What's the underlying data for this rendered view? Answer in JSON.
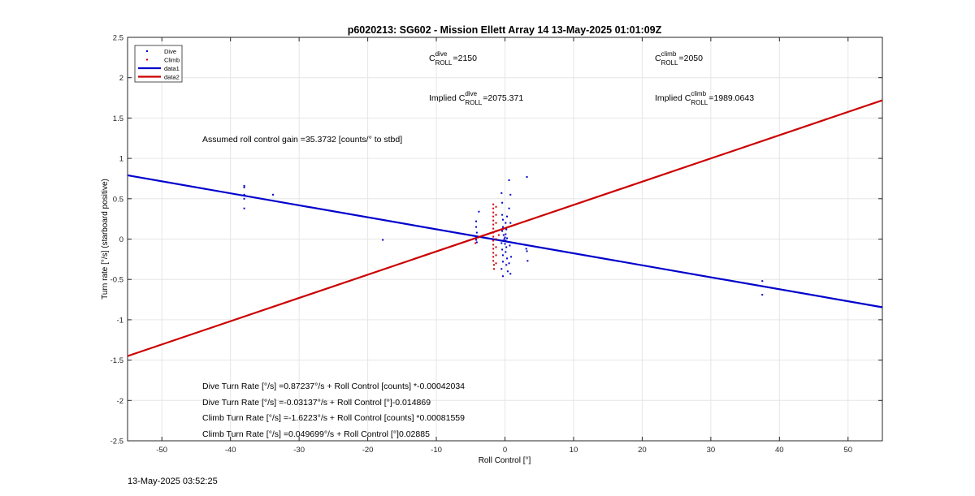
{
  "chart_data": {
    "type": "scatter",
    "title": "p6020213: SG602 - Mission Ellett Array 14 13-May-2025 01:01:09Z",
    "xlabel": "Roll Control [°]",
    "ylabel": "Turn rate [°/s] (starboard positive)",
    "xlim": [
      -55,
      55
    ],
    "ylim": [
      -2.5,
      2.5
    ],
    "xticks": [
      -50,
      -40,
      -30,
      -20,
      -10,
      0,
      10,
      20,
      30,
      40,
      50
    ],
    "yticks": [
      -2.5,
      -2,
      -1.5,
      -1,
      -0.5,
      0,
      0.5,
      1,
      1.5,
      2,
      2.5
    ],
    "grid": true,
    "legend": {
      "placement": "top-left",
      "entries": [
        {
          "label": "Dive",
          "color": "#0000cc",
          "kind": "marker"
        },
        {
          "label": "Climb",
          "color": "#cc0000",
          "kind": "marker"
        },
        {
          "label": "data1",
          "color": "#0000cc",
          "kind": "line"
        },
        {
          "label": "data2",
          "color": "#cc0000",
          "kind": "line"
        }
      ]
    },
    "series": [
      {
        "name": "Dive",
        "color": "#0000cc",
        "points": [
          [
            -38,
            0.66
          ],
          [
            -38,
            0.64
          ],
          [
            -38,
            0.55
          ],
          [
            -38,
            0.5
          ],
          [
            -38,
            0.38
          ],
          [
            -33.8,
            0.55
          ],
          [
            -17.8,
            -0.01
          ],
          [
            -4.2,
            0.22
          ],
          [
            -4.2,
            0.15
          ],
          [
            -4.1,
            0.08
          ],
          [
            -4.1,
            0.03
          ],
          [
            -4.2,
            -0.01
          ],
          [
            -4.1,
            -0.04
          ],
          [
            -3.8,
            0.34
          ],
          [
            -0.5,
            0.57
          ],
          [
            -0.4,
            0.45
          ],
          [
            -0.4,
            0.3
          ],
          [
            -0.3,
            0.24
          ],
          [
            -0.3,
            0.15
          ],
          [
            -0.4,
            0.1
          ],
          [
            -0.5,
            -0.05
          ],
          [
            -0.4,
            -0.13
          ],
          [
            -0.3,
            -0.2
          ],
          [
            -0.3,
            -0.28
          ],
          [
            -0.5,
            -0.37
          ],
          [
            -0.3,
            -0.46
          ],
          [
            0.0,
            0.02
          ],
          [
            0.1,
            -0.02
          ],
          [
            -0.1,
            0.0
          ],
          [
            0.2,
            -0.03
          ],
          [
            0.0,
            -0.06
          ],
          [
            0.1,
            0.06
          ],
          [
            -0.2,
            0.05
          ],
          [
            0.3,
            0.01
          ],
          [
            -0.3,
            -0.02
          ],
          [
            0.2,
            0.12
          ],
          [
            0.1,
            0.2
          ],
          [
            0.3,
            0.28
          ],
          [
            0.2,
            -0.1
          ],
          [
            0.1,
            -0.16
          ],
          [
            0.3,
            -0.24
          ],
          [
            0.2,
            -0.32
          ],
          [
            0.4,
            -0.4
          ],
          [
            0.6,
            0.73
          ],
          [
            0.8,
            0.55
          ],
          [
            0.6,
            0.38
          ],
          [
            0.8,
            0.2
          ],
          [
            0.7,
            -0.08
          ],
          [
            0.9,
            -0.22
          ],
          [
            0.6,
            -0.3
          ],
          [
            0.8,
            -0.43
          ],
          [
            3.2,
            0.77
          ],
          [
            3.1,
            -0.12
          ],
          [
            3.2,
            -0.15
          ],
          [
            3.3,
            -0.27
          ],
          [
            37.5,
            -0.52
          ],
          [
            37.5,
            -0.69
          ]
        ]
      },
      {
        "name": "Climb",
        "color": "#cc0000",
        "points": [
          [
            -1.7,
            0.43
          ],
          [
            -1.7,
            0.38
          ],
          [
            -1.7,
            0.33
          ],
          [
            -1.7,
            0.28
          ],
          [
            -1.7,
            0.23
          ],
          [
            -1.7,
            0.18
          ],
          [
            -1.7,
            0.13
          ],
          [
            -1.7,
            0.08
          ],
          [
            -1.7,
            0.03
          ],
          [
            -1.7,
            -0.02
          ],
          [
            -1.7,
            -0.07
          ],
          [
            -1.7,
            -0.12
          ],
          [
            -1.7,
            -0.17
          ],
          [
            -1.7,
            -0.22
          ],
          [
            -1.7,
            -0.27
          ],
          [
            -1.6,
            -0.32
          ],
          [
            -1.6,
            -0.37
          ],
          [
            -1.3,
            0.4
          ],
          [
            -1.3,
            0.3
          ],
          [
            -1.3,
            0.2
          ],
          [
            -1.3,
            0.1
          ],
          [
            -1.3,
            0.0
          ],
          [
            -1.3,
            -0.1
          ],
          [
            -1.3,
            -0.2
          ],
          [
            -1.3,
            -0.3
          ],
          [
            -4.3,
            -0.05
          ],
          [
            -3.9,
            0.02
          ],
          [
            -0.9,
            0.05
          ]
        ]
      }
    ],
    "fit_lines": [
      {
        "name": "data1",
        "color": "#0000cc",
        "x": [
          -55,
          55
        ],
        "y": [
          0.79,
          -0.845
        ]
      },
      {
        "name": "data2",
        "color": "#cc0000",
        "x": [
          -55,
          55
        ],
        "y": [
          -1.45,
          1.72
        ]
      }
    ],
    "annotations": {
      "c_roll_dive": {
        "base": "C",
        "sup": "dive",
        "sub": "ROLL",
        "value": "=2150"
      },
      "c_roll_climb": {
        "base": "C",
        "sup": "climb",
        "sub": "ROLL",
        "value": "=2050"
      },
      "implied_dive": {
        "prefix": "Implied ",
        "base": "C",
        "sup": "dive",
        "sub": "ROLL",
        "value": "=2075.371"
      },
      "implied_climb": {
        "prefix": "Implied ",
        "base": "C",
        "sup": "climb",
        "sub": "ROLL",
        "value": "=1989.0643"
      },
      "gain": "Assumed roll control gain =35.3732 [counts/° to stbd]",
      "eq1": "Dive Turn Rate [°/s] =0.87237°/s + Roll Control [counts] *-0.00042034",
      "eq2": "Dive Turn Rate [°/s] =-0.03137°/s + Roll Control [°]-0.014869",
      "eq3": "Climb Turn Rate [°/s] =-1.6223°/s + Roll Control [counts] *0.00081559",
      "eq4": "Climb Turn Rate [°/s] =0.049699°/s + Roll Control [°]0.02885"
    }
  },
  "footer": {
    "timestamp": "13-May-2025 03:52:25"
  }
}
